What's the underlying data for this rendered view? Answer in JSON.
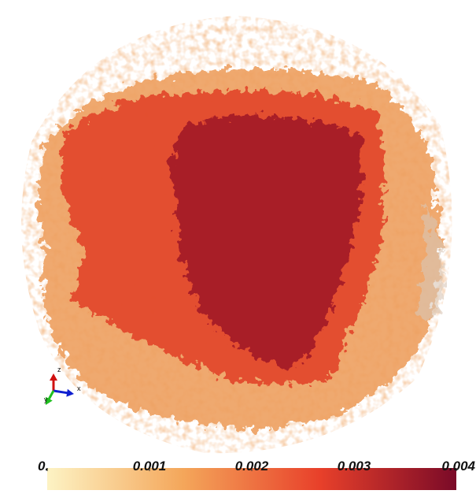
{
  "chart_data": {
    "type": "volume",
    "colorbar": {
      "lim": [
        0,
        0.004
      ],
      "ticks": [
        {
          "value": 0,
          "label": "0."
        },
        0.001,
        0.002,
        0.003,
        0.004
      ],
      "colors": [
        "#fdf3c4",
        "#f4a65a",
        "#e8402a",
        "#7a0a28"
      ]
    },
    "axes": [
      {
        "name": "z",
        "color": "#d01010"
      },
      {
        "name": "x",
        "color": "#1020d0"
      },
      {
        "name": "y",
        "color": "#20c020"
      }
    ]
  }
}
